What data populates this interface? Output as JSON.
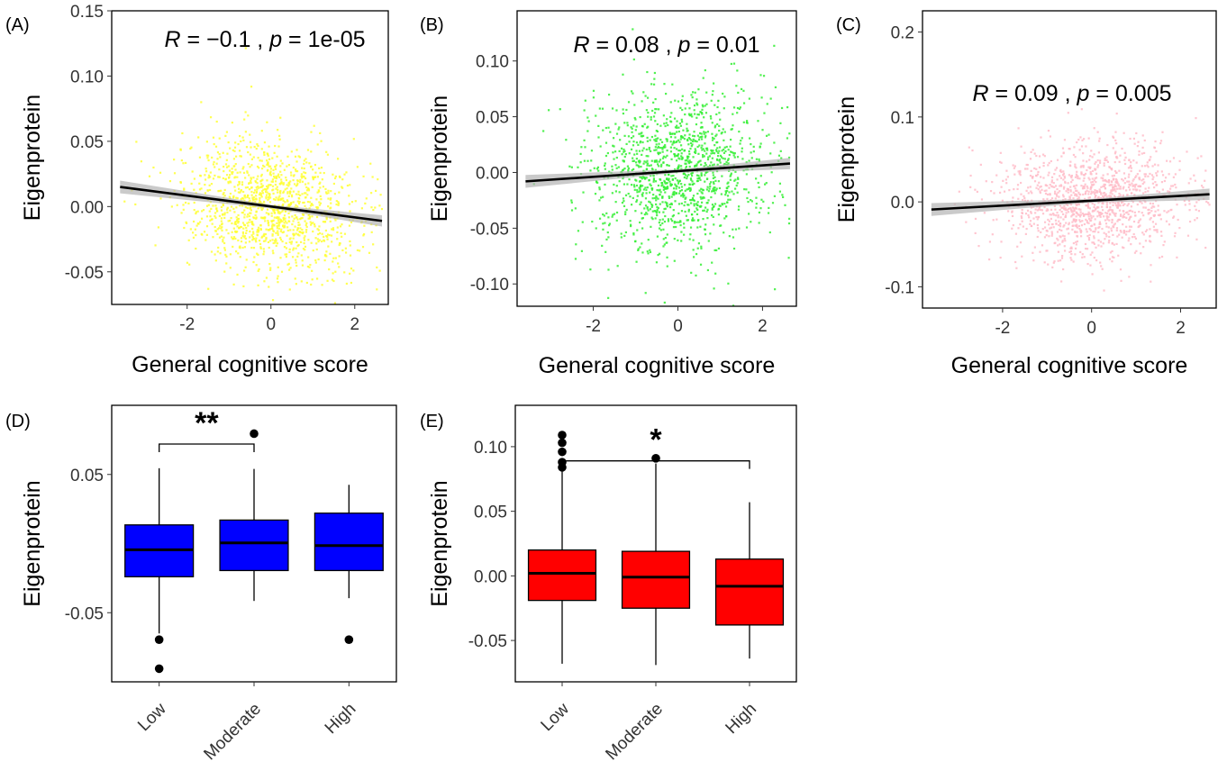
{
  "panel_labels": [
    "(A)",
    "(B)",
    "(C)",
    "(D)",
    "(E)"
  ],
  "chart_data": [
    {
      "type": "scatter",
      "panel": "(A)",
      "xlabel": "General cognitive score",
      "ylabel": "Eigenprotein",
      "annotation": {
        "R": "R",
        "R_val": " = −0.1 , ",
        "p": "p",
        "p_val": " = 1e-05"
      },
      "xlim": [
        -3.8,
        2.8
      ],
      "ylim": [
        -0.075,
        0.15
      ],
      "xticks": [
        {
          "v": -2,
          "label": "-2"
        },
        {
          "v": 0,
          "label": "0"
        },
        {
          "v": 2,
          "label": "2"
        }
      ],
      "yticks": [
        {
          "v": -0.05,
          "label": "-0.05"
        },
        {
          "v": 0,
          "label": "0.00"
        },
        {
          "v": 0.05,
          "label": "0.05"
        },
        {
          "v": 0.1,
          "label": "0.10"
        },
        {
          "v": 0.15,
          "label": "0.15"
        }
      ],
      "fit": {
        "x": [
          -3.6,
          2.65
        ],
        "y": [
          0.015,
          -0.011
        ]
      },
      "point_color": "#ffff33",
      "point_sd": 0.025,
      "n_points": 1300
    },
    {
      "type": "scatter",
      "panel": "(B)",
      "xlabel": "General cognitive score",
      "ylabel": "Eigenprotein",
      "annotation": {
        "R": "R",
        "R_val": " = 0.08 , ",
        "p": "p",
        "p_val": " = 0.01"
      },
      "xlim": [
        -3.8,
        2.8
      ],
      "ylim": [
        -0.12,
        0.145
      ],
      "xticks": [
        {
          "v": -2,
          "label": "-2"
        },
        {
          "v": 0,
          "label": "0"
        },
        {
          "v": 2,
          "label": "2"
        }
      ],
      "yticks": [
        {
          "v": -0.1,
          "label": "-0.10"
        },
        {
          "v": -0.05,
          "label": "-0.05"
        },
        {
          "v": 0,
          "label": "0.00"
        },
        {
          "v": 0.05,
          "label": "0.05"
        },
        {
          "v": 0.1,
          "label": "0.10"
        }
      ],
      "fit": {
        "x": [
          -3.6,
          2.65
        ],
        "y": [
          -0.008,
          0.008
        ]
      },
      "point_color": "#33ee33",
      "point_sd": 0.035,
      "n_points": 1300
    },
    {
      "type": "scatter",
      "panel": "(C)",
      "xlabel": "General cognitive score",
      "ylabel": "Eigenprotein",
      "annotation": {
        "R": "R",
        "R_val": " = 0.09 , ",
        "p": "p",
        "p_val": " = 0.005"
      },
      "xlim": [
        -3.8,
        2.8
      ],
      "ylim": [
        -0.125,
        0.225
      ],
      "xticks": [
        {
          "v": -2,
          "label": "-2"
        },
        {
          "v": 0,
          "label": "0"
        },
        {
          "v": 2,
          "label": "2"
        }
      ],
      "yticks": [
        {
          "v": -0.1,
          "label": "-0.1"
        },
        {
          "v": 0,
          "label": "0.0"
        },
        {
          "v": 0.1,
          "label": "0.1"
        },
        {
          "v": 0.2,
          "label": "0.2"
        }
      ],
      "fit": {
        "x": [
          -3.6,
          2.65
        ],
        "y": [
          -0.009,
          0.009
        ]
      },
      "point_color": "#ffbcc8",
      "point_sd": 0.033,
      "n_points": 1300
    },
    {
      "type": "box",
      "panel": "(D)",
      "ylabel": "Eigenprotein",
      "categories": [
        "Low",
        "Moderate",
        "High"
      ],
      "ylim": [
        -0.1,
        0.1
      ],
      "yticks": [
        {
          "v": -0.05,
          "label": "-0.05"
        },
        {
          "v": 0.05,
          "label": "0.05"
        }
      ],
      "fill": "#0000ff",
      "boxes": [
        {
          "low": -0.065,
          "q1": -0.024,
          "median": -0.0045,
          "q3": 0.0135,
          "high": 0.0545,
          "outliers": [
            -0.0695,
            -0.0905
          ]
        },
        {
          "low": -0.0415,
          "q1": -0.0195,
          "median": 0.0005,
          "q3": 0.017,
          "high": 0.054,
          "outliers": [
            0.0795
          ]
        },
        {
          "low": -0.0395,
          "q1": -0.0195,
          "median": -0.0015,
          "q3": 0.022,
          "high": 0.0425,
          "outliers": [
            -0.0695
          ]
        }
      ],
      "comparison": {
        "from": 0,
        "to": 1,
        "y": 0.072,
        "label": "**"
      }
    },
    {
      "type": "box",
      "panel": "(E)",
      "ylabel": "Eigenprotein",
      "categories": [
        "Low",
        "Moderate",
        "High"
      ],
      "ylim": [
        -0.082,
        0.132
      ],
      "yticks": [
        {
          "v": -0.05,
          "label": "-0.05"
        },
        {
          "v": 0,
          "label": "0.00"
        },
        {
          "v": 0.05,
          "label": "0.05"
        },
        {
          "v": 0.1,
          "label": "0.10"
        }
      ],
      "fill": "#ff0000",
      "boxes": [
        {
          "low": -0.068,
          "q1": -0.019,
          "median": 0.002,
          "q3": 0.02,
          "high": 0.082,
          "outliers": [
            0.084,
            0.088,
            0.096,
            0.103,
            0.109
          ]
        },
        {
          "low": -0.069,
          "q1": -0.025,
          "median": -0.001,
          "q3": 0.019,
          "high": 0.087,
          "outliers": [
            0.091
          ]
        },
        {
          "low": -0.064,
          "q1": -0.038,
          "median": -0.008,
          "q3": 0.013,
          "high": 0.057,
          "outliers": []
        }
      ],
      "comparison": {
        "from": 0,
        "to": 2,
        "y": 0.089,
        "label": "*"
      }
    }
  ]
}
